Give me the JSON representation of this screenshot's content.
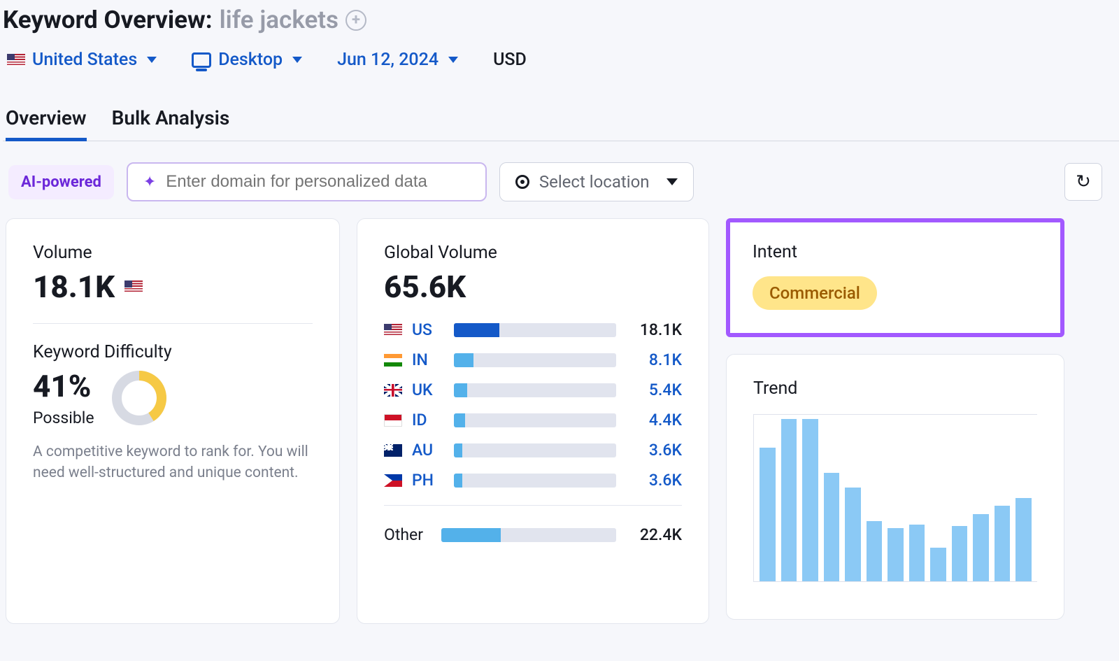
{
  "header": {
    "title_prefix": "Keyword Overview:",
    "keyword": "life jackets"
  },
  "filters": {
    "country": "United States",
    "device": "Desktop",
    "date": "Jun 12, 2024",
    "currency": "USD"
  },
  "tabs": {
    "overview": "Overview",
    "bulk": "Bulk Analysis",
    "active": "overview"
  },
  "toolbar": {
    "ai_badge": "AI-powered",
    "domain_placeholder": "Enter domain for personalized data",
    "location_placeholder": "Select location"
  },
  "volume_card": {
    "label": "Volume",
    "value": "18.1K",
    "kd_label": "Keyword Difficulty",
    "kd_pct": "41%",
    "kd_value": 41,
    "kd_text": "Possible",
    "kd_desc": "A competitive keyword to rank for. You will need well-structured and unique content.",
    "donut": {
      "track_color": "#d7dae3",
      "fill_color": "#f6c945",
      "stroke_width": 14
    }
  },
  "global_card": {
    "label": "Global Volume",
    "value": "65.6K",
    "countries": [
      {
        "code": "US",
        "flag": "us",
        "value": "18.1K",
        "pct": 28,
        "primary": true
      },
      {
        "code": "IN",
        "flag": "in",
        "value": "8.1K",
        "pct": 12
      },
      {
        "code": "UK",
        "flag": "uk",
        "value": "5.4K",
        "pct": 8
      },
      {
        "code": "ID",
        "flag": "id",
        "value": "4.4K",
        "pct": 7
      },
      {
        "code": "AU",
        "flag": "au",
        "value": "3.6K",
        "pct": 5
      },
      {
        "code": "PH",
        "flag": "ph",
        "value": "3.6K",
        "pct": 5
      }
    ],
    "other_label": "Other",
    "other_value": "22.4K",
    "other_pct": 34
  },
  "intent_card": {
    "label": "Intent",
    "value": "Commercial",
    "badge_bg": "#ffe58a",
    "badge_color": "#9a5b00",
    "highlight_border": "#a259ff"
  },
  "trend_card": {
    "label": "Trend",
    "bar_color": "#8bc9f5",
    "values": [
      80,
      97,
      97,
      65,
      56,
      36,
      32,
      34,
      20,
      33,
      40,
      45,
      50
    ]
  },
  "colors": {
    "link": "#1459c8",
    "card_border": "#e3e6ee",
    "bg": "#f6f7fb"
  }
}
